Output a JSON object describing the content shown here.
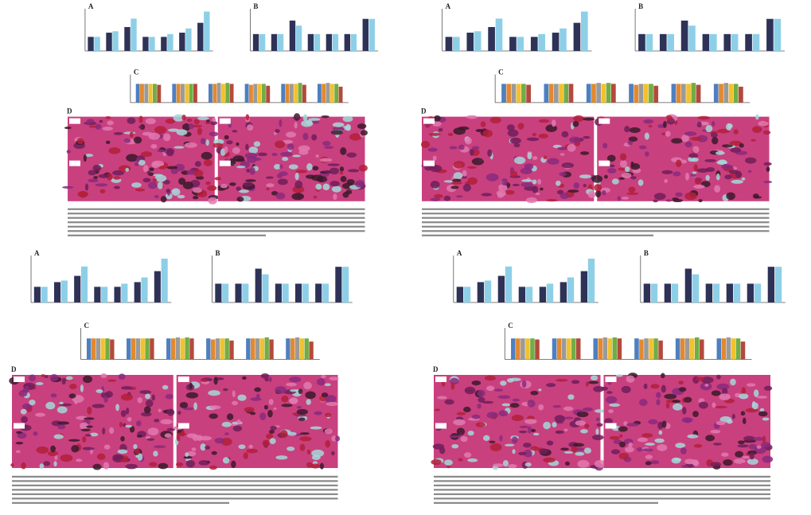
{
  "figures": [
    {
      "panels": [
        {
          "label": "A",
          "ylim": [
            0,
            3
          ],
          "series": [
            {
              "color": "#2e3257",
              "values": [
                1,
                1.3,
                1.7,
                1,
                1,
                1.3,
                2
              ]
            },
            {
              "color": "#8ecfe8",
              "values": [
                1,
                1.4,
                2.3,
                1,
                1.2,
                1.6,
                2.8
              ]
            }
          ]
        },
        {
          "label": "B",
          "ylim": [
            0,
            2.5
          ],
          "series": [
            {
              "color": "#2e3257",
              "values": [
                1,
                1,
                1.8,
                1,
                1,
                1,
                1.9
              ]
            },
            {
              "color": "#8ecfe8",
              "values": [
                1,
                1,
                1.5,
                1,
                1,
                1,
                1.9
              ]
            }
          ]
        },
        {
          "label": "C",
          "ylim": [
            0,
            1.5
          ],
          "series": [
            {
              "color": "#4e7fc0",
              "values": [
                1,
                1,
                1,
                1,
                1,
                1
              ]
            },
            {
              "color": "#e2892f",
              "values": [
                1,
                1,
                1,
                0.95,
                1,
                1
              ]
            },
            {
              "color": "#9a9a9a",
              "values": [
                1,
                1,
                1.05,
                1,
                1,
                1.05
              ]
            },
            {
              "color": "#f2c12e",
              "values": [
                1,
                1,
                1,
                1,
                1,
                1
              ]
            },
            {
              "color": "#70ad47",
              "values": [
                1,
                1,
                1.05,
                1,
                1.05,
                1
              ]
            },
            {
              "color": "#b44a3c",
              "values": [
                0.95,
                1,
                1,
                0.9,
                0.95,
                0.85
              ]
            }
          ]
        },
        {
          "label": "D"
        }
      ]
    },
    {
      "panels": [
        {
          "label": "A",
          "ylim": [
            0,
            3
          ],
          "series": [
            {
              "color": "#2e3257",
              "values": [
                1,
                1.3,
                1.7,
                1,
                1,
                1.3,
                2
              ]
            },
            {
              "color": "#8ecfe8",
              "values": [
                1,
                1.4,
                2.3,
                1,
                1.2,
                1.6,
                2.8
              ]
            }
          ]
        },
        {
          "label": "B",
          "ylim": [
            0,
            2.5
          ],
          "series": [
            {
              "color": "#2e3257",
              "values": [
                1,
                1,
                1.8,
                1,
                1,
                1,
                1.9
              ]
            },
            {
              "color": "#8ecfe8",
              "values": [
                1,
                1,
                1.5,
                1,
                1,
                1,
                1.9
              ]
            }
          ]
        },
        {
          "label": "C",
          "ylim": [
            0,
            1.5
          ],
          "series": [
            {
              "color": "#4e7fc0",
              "values": [
                1,
                1,
                1,
                1,
                1,
                1
              ]
            },
            {
              "color": "#e2892f",
              "values": [
                1,
                1,
                1,
                0.95,
                1,
                1
              ]
            },
            {
              "color": "#9a9a9a",
              "values": [
                1,
                1,
                1.05,
                1,
                1,
                1.05
              ]
            },
            {
              "color": "#f2c12e",
              "values": [
                1,
                1,
                1,
                1,
                1,
                1
              ]
            },
            {
              "color": "#70ad47",
              "values": [
                1,
                1,
                1.05,
                1,
                1.05,
                1
              ]
            },
            {
              "color": "#b44a3c",
              "values": [
                0.95,
                1,
                1,
                0.9,
                0.95,
                0.85
              ]
            }
          ]
        },
        {
          "label": "D"
        }
      ]
    },
    {
      "panels": [
        {
          "label": "A",
          "ylim": [
            0,
            3
          ],
          "series": [
            {
              "color": "#2e3257",
              "values": [
                1,
                1.3,
                1.7,
                1,
                1,
                1.3,
                2
              ]
            },
            {
              "color": "#8ecfe8",
              "values": [
                1,
                1.4,
                2.3,
                1,
                1.2,
                1.6,
                2.8
              ]
            }
          ]
        },
        {
          "label": "B",
          "ylim": [
            0,
            2.5
          ],
          "series": [
            {
              "color": "#2e3257",
              "values": [
                1,
                1,
                1.8,
                1,
                1,
                1,
                1.9
              ]
            },
            {
              "color": "#8ecfe8",
              "values": [
                1,
                1,
                1.5,
                1,
                1,
                1,
                1.9
              ]
            }
          ]
        },
        {
          "label": "C",
          "ylim": [
            0,
            1.5
          ],
          "series": [
            {
              "color": "#4e7fc0",
              "values": [
                1,
                1,
                1,
                1,
                1,
                1
              ]
            },
            {
              "color": "#e2892f",
              "values": [
                1,
                1,
                1,
                0.95,
                1,
                1
              ]
            },
            {
              "color": "#9a9a9a",
              "values": [
                1,
                1,
                1.05,
                1,
                1,
                1.05
              ]
            },
            {
              "color": "#f2c12e",
              "values": [
                1,
                1,
                1,
                1,
                1,
                1
              ]
            },
            {
              "color": "#70ad47",
              "values": [
                1,
                1,
                1.05,
                1,
                1.05,
                1
              ]
            },
            {
              "color": "#b44a3c",
              "values": [
                0.95,
                1,
                1,
                0.9,
                0.95,
                0.85
              ]
            }
          ]
        },
        {
          "label": "D"
        }
      ]
    },
    {
      "panels": [
        {
          "label": "A",
          "ylim": [
            0,
            3
          ],
          "series": [
            {
              "color": "#2e3257",
              "values": [
                1,
                1.3,
                1.7,
                1,
                1,
                1.3,
                2
              ]
            },
            {
              "color": "#8ecfe8",
              "values": [
                1,
                1.4,
                2.3,
                1,
                1.2,
                1.6,
                2.8
              ]
            }
          ]
        },
        {
          "label": "B",
          "ylim": [
            0,
            2.5
          ],
          "series": [
            {
              "color": "#2e3257",
              "values": [
                1,
                1,
                1.8,
                1,
                1,
                1,
                1.9
              ]
            },
            {
              "color": "#8ecfe8",
              "values": [
                1,
                1,
                1.5,
                1,
                1,
                1,
                1.9
              ]
            }
          ]
        },
        {
          "label": "C",
          "ylim": [
            0,
            1.5
          ],
          "series": [
            {
              "color": "#4e7fc0",
              "values": [
                1,
                1,
                1,
                1,
                1,
                1
              ]
            },
            {
              "color": "#e2892f",
              "values": [
                1,
                1,
                1,
                0.95,
                1,
                1
              ]
            },
            {
              "color": "#9a9a9a",
              "values": [
                1,
                1,
                1.05,
                1,
                1,
                1.05
              ]
            },
            {
              "color": "#f2c12e",
              "values": [
                1,
                1,
                1,
                1,
                1,
                1
              ]
            },
            {
              "color": "#70ad47",
              "values": [
                1,
                1,
                1.05,
                1,
                1.05,
                1
              ]
            },
            {
              "color": "#b44a3c",
              "values": [
                0.95,
                1,
                1,
                0.9,
                0.95,
                0.85
              ]
            }
          ]
        },
        {
          "label": "D"
        }
      ]
    }
  ]
}
